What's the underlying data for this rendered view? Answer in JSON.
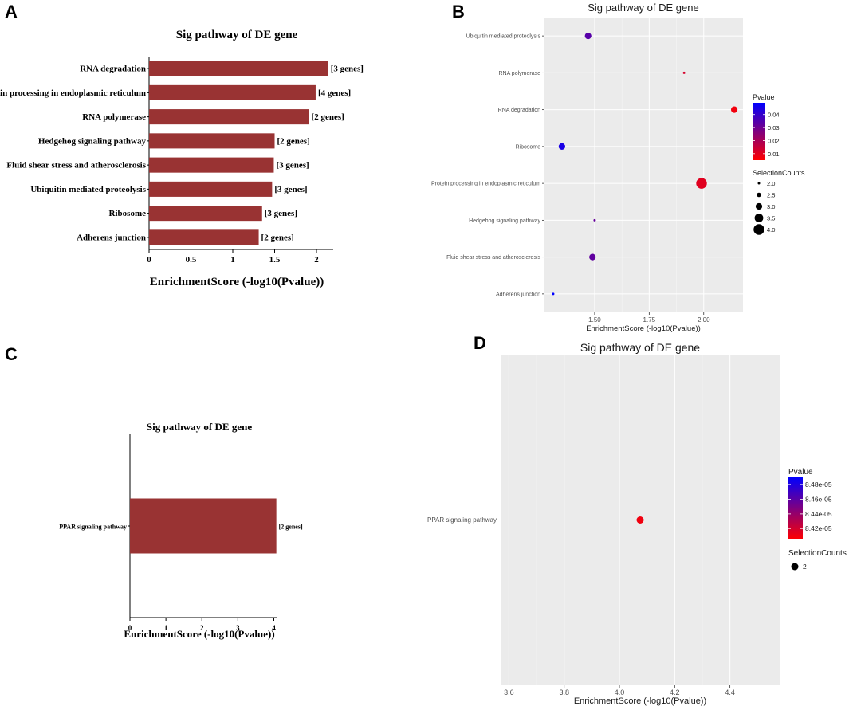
{
  "figure": {
    "panel_labels": [
      "A",
      "B",
      "C",
      "D"
    ]
  },
  "colors": {
    "bar": "#993333",
    "panel_bg": "#ebebeb",
    "grid": "#ffffff",
    "p_low": "#ff0000",
    "p_high": "#0000ff"
  },
  "chart_data": [
    {
      "panel": "A",
      "type": "bar",
      "orientation": "horizontal",
      "title": "Sig pathway of DE gene",
      "xlabel": "EnrichmentScore (-log10(Pvalue))",
      "ylabel": "",
      "xlim": [
        0,
        2.2
      ],
      "xticks": [
        0,
        0.5,
        1,
        1.5,
        2
      ],
      "xtick_labels": [
        "0",
        "0.5",
        "1",
        "1.5",
        "2"
      ],
      "categories": [
        "RNA degradation",
        "Protein processing in endoplasmic reticulum",
        "RNA polymerase",
        "Hedgehog signaling pathway",
        "Fluid shear stress and atherosclerosis",
        "Ubiquitin mediated proteolysis",
        "Ribosome",
        "Adherens junction"
      ],
      "category_labels": [
        "RNA degradation",
        "rotein processing in endoplasmic reticulum",
        "RNA polymerase",
        "Hedgehog signaling pathway",
        "Fluid shear stress and atherosclerosis",
        "Ubiquitin mediated proteolysis",
        "Ribosome",
        "Adherens junction"
      ],
      "values": [
        2.14,
        1.99,
        1.91,
        1.5,
        1.49,
        1.47,
        1.35,
        1.31
      ],
      "bar_labels": [
        "[3 genes]",
        "[4 genes]",
        "[2 genes]",
        "[2 genes]",
        "[3 genes]",
        "[3 genes]",
        "[3 genes]",
        "[2 genes]"
      ]
    },
    {
      "panel": "B",
      "type": "scatter",
      "title": "Sig pathway of DE gene",
      "xlabel": "EnrichmentScore (-log10(Pvalue))",
      "ylabel": "",
      "xlim": [
        1.27,
        2.18
      ],
      "xticks": [
        1.5,
        1.75,
        2.0
      ],
      "xtick_labels": [
        "1.50",
        "1.75",
        "2.00"
      ],
      "categories": [
        "Ubiquitin mediated proteolysis",
        "RNA polymerase",
        "RNA degradation",
        "Ribosome",
        "Protein processing in endoplasmic reticulum",
        "Hedgehog signaling pathway",
        "Fluid shear stress and atherosclerosis",
        "Adherens junction"
      ],
      "x": [
        1.47,
        1.91,
        2.14,
        1.35,
        1.99,
        1.5,
        1.49,
        1.31
      ],
      "pvalue": [
        0.034,
        0.0123,
        0.0072,
        0.0447,
        0.0103,
        0.0316,
        0.0324,
        0.049
      ],
      "counts": [
        3,
        2,
        3,
        3,
        4,
        2,
        3,
        2
      ],
      "legend_pvalue": {
        "title": "Pvalue",
        "range": [
          0.005,
          0.049
        ],
        "ticks": [
          0.04,
          0.03,
          0.02,
          0.01
        ],
        "tick_labels": [
          "0.04",
          "0.03",
          "0.02",
          "0.01"
        ]
      },
      "legend_size": {
        "title": "SelectionCounts",
        "values": [
          2.0,
          2.5,
          3.0,
          3.5,
          4.0
        ],
        "labels": [
          "2.0",
          "2.5",
          "3.0",
          "3.5",
          "4.0"
        ]
      }
    },
    {
      "panel": "C",
      "type": "bar",
      "orientation": "horizontal",
      "title": "Sig pathway of DE gene",
      "xlabel": "EnrichmentScore (-log10(Pvalue))",
      "ylabel": "",
      "xlim": [
        0,
        4.1
      ],
      "xticks": [
        0,
        1,
        2,
        3,
        4
      ],
      "xtick_labels": [
        "0",
        "1",
        "2",
        "3",
        "4"
      ],
      "categories": [
        "PPAR signaling pathway"
      ],
      "category_labels": [
        "PPAR signaling pathway"
      ],
      "values": [
        4.07
      ],
      "bar_labels": [
        "[2 genes]"
      ]
    },
    {
      "panel": "D",
      "type": "scatter",
      "title": "Sig pathway of DE gene",
      "xlabel": "EnrichmentScore (-log10(Pvalue))",
      "ylabel": "",
      "xlim": [
        3.57,
        4.58
      ],
      "xticks": [
        3.6,
        3.8,
        4.0,
        4.2,
        4.4
      ],
      "xtick_labels": [
        "3.6",
        "3.8",
        "4.0",
        "4.2",
        "4.4"
      ],
      "categories": [
        "PPAR signaling pathway"
      ],
      "x": [
        4.075
      ],
      "pvalue": [
        8.41e-05
      ],
      "counts": [
        2
      ],
      "legend_pvalue": {
        "title": "Pvalue",
        "range": [
          8.405e-05,
          8.49e-05
        ],
        "ticks": [
          8.48e-05,
          8.46e-05,
          8.44e-05,
          8.42e-05
        ],
        "tick_labels": [
          "8.48e-05",
          "8.46e-05",
          "8.44e-05",
          "8.42e-05"
        ]
      },
      "legend_size": {
        "title": "SelectionCounts",
        "values": [
          2
        ],
        "labels": [
          "2"
        ]
      }
    }
  ]
}
